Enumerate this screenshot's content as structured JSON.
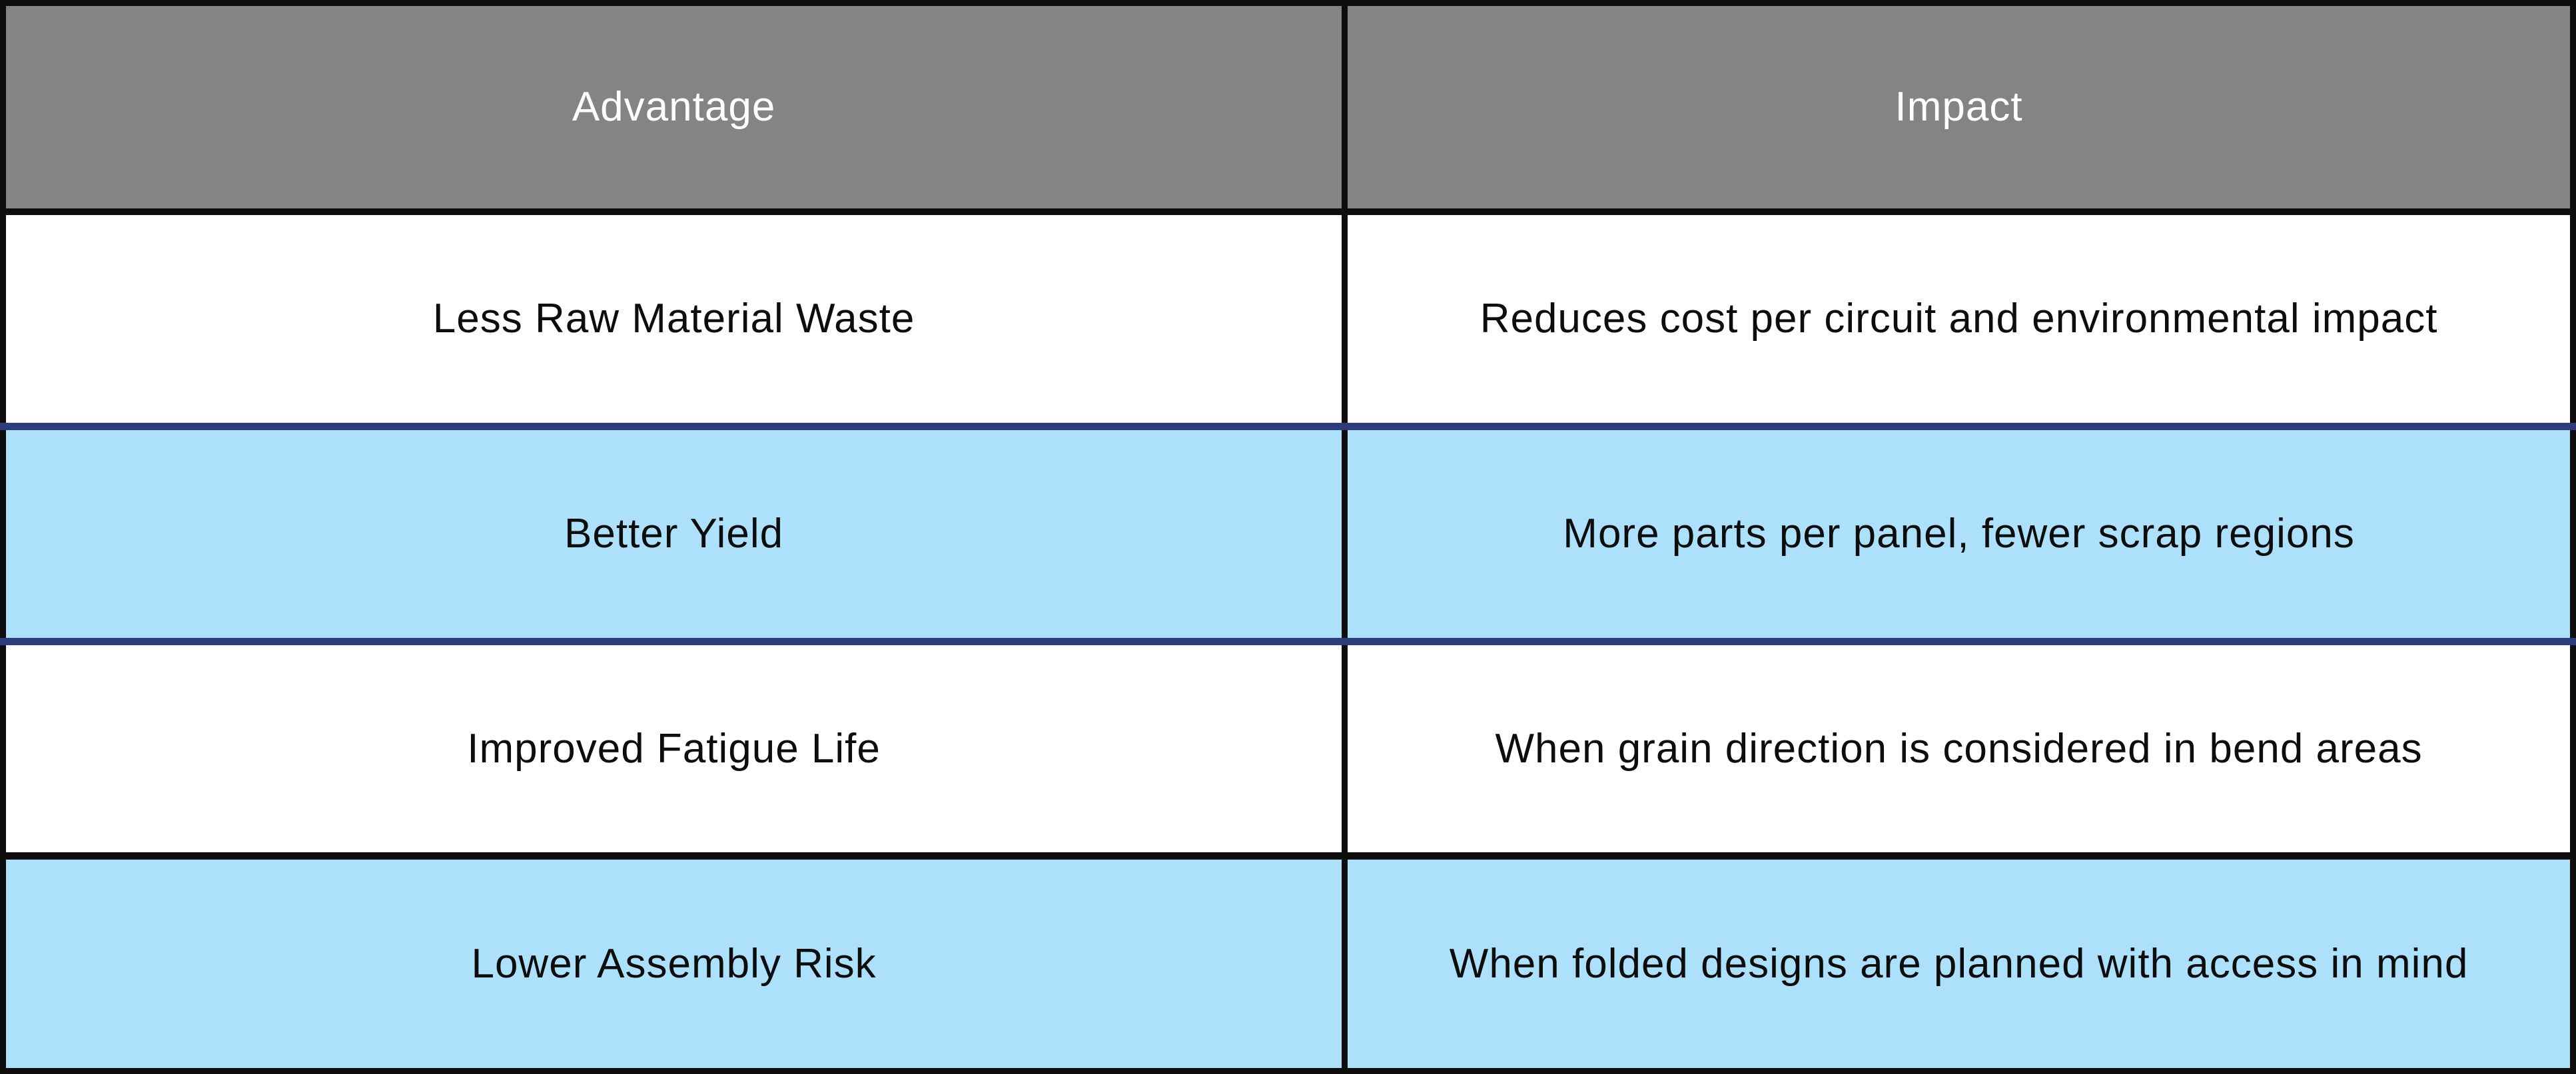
{
  "table": {
    "columns": [
      "Advantage",
      "Impact"
    ],
    "rows": [
      {
        "advantage": "Less Raw Material Waste",
        "impact": "Reduces cost per circuit and environmental impact"
      },
      {
        "advantage": "Better Yield",
        "impact": "More parts per panel, fewer scrap regions"
      },
      {
        "advantage": "Improved Fatigue Life",
        "impact": "When grain direction is considered in bend areas"
      },
      {
        "advantage": "Lower Assembly Risk",
        "impact": "When folded designs are planned with access in mind"
      }
    ]
  },
  "colors": {
    "header_bg": "#848484",
    "header_text": "#ffffff",
    "row_bg": "#ffffff",
    "row_alt_bg": "#ace0fb",
    "border_dark": "#0e0e0e",
    "border_navy": "#2e3c7e",
    "cell_text": "#0d0d0d"
  },
  "chart_data": {
    "type": "table",
    "title": "",
    "columns": [
      "Advantage",
      "Impact"
    ],
    "rows": [
      [
        "Less Raw Material Waste",
        "Reduces cost per circuit and environmental impact"
      ],
      [
        "Better Yield",
        "More parts per panel, fewer scrap regions"
      ],
      [
        "Improved Fatigue Life",
        "When grain direction is considered in bend areas"
      ],
      [
        "Lower Assembly Risk",
        "When folded designs are planned with access in mind"
      ]
    ],
    "layout_hints": {
      "header_fill": "#848484",
      "zebra_striping": "even rows white, odd rows light blue",
      "grid": "on"
    }
  }
}
